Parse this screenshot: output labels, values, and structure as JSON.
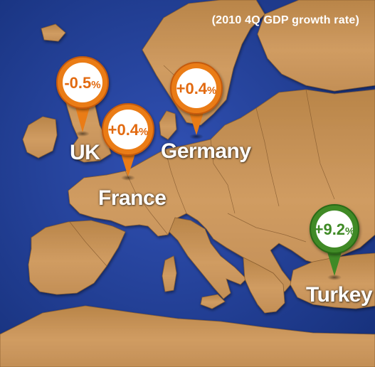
{
  "title": "(2010 4Q GDP growth rate)",
  "colors": {
    "sea": "#24449a",
    "land": "#c48f55",
    "orange_pin": "#ea7c16",
    "orange_pin_dark": "#c55a0a",
    "green_pin": "#3f8a26",
    "green_pin_dark": "#2a6a18",
    "value_orange": "#e26a10",
    "value_green": "#3f8a26"
  },
  "markers": [
    {
      "country": "UK",
      "number": "-0.5",
      "unit": "%",
      "value_pct": -0.5,
      "color": "orange"
    },
    {
      "country": "France",
      "number": "+0.4",
      "unit": "%",
      "value_pct": 0.4,
      "color": "orange"
    },
    {
      "country": "Germany",
      "number": "+0.4",
      "unit": "%",
      "value_pct": 0.4,
      "color": "orange"
    },
    {
      "country": "Turkey",
      "number": "+9.2",
      "unit": "%",
      "value_pct": 9.2,
      "color": "green"
    }
  ]
}
